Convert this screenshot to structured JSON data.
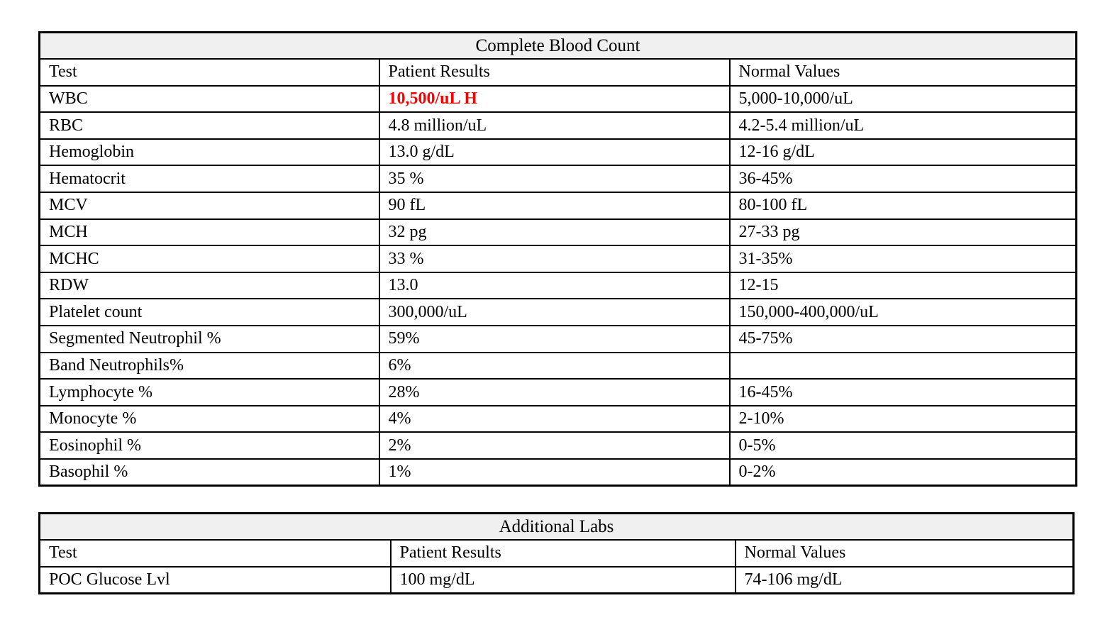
{
  "colors": {
    "background": "#ffffff",
    "table_border": "#000000",
    "title_row_fill": "#f0f0f0",
    "text": "#000000",
    "abnormal_value": "#ff0000"
  },
  "cbc_table": {
    "title": "Complete Blood Count",
    "columns": [
      "Test",
      "Patient Results",
      "Normal Values"
    ],
    "rows": [
      {
        "test": "WBC",
        "result": "10,500/uL H",
        "normal": "5,000-10,000/uL",
        "abnormal": true
      },
      {
        "test": "RBC",
        "result": "4.8 million/uL",
        "normal": "4.2-5.4 million/uL"
      },
      {
        "test": "Hemoglobin",
        "result": "13.0 g/dL",
        "normal": "12-16 g/dL"
      },
      {
        "test": "Hematocrit",
        "result": "35 %",
        "normal": "36-45%"
      },
      {
        "test": "MCV",
        "result": "90 fL",
        "normal": "80-100 fL"
      },
      {
        "test": "MCH",
        "result": "32 pg",
        "normal": "27-33 pg"
      },
      {
        "test": "MCHC",
        "result": "33 %",
        "normal": "31-35%"
      },
      {
        "test": "RDW",
        "result": "13.0",
        "normal": "12-15"
      },
      {
        "test": "Platelet count",
        "result": "300,000/uL",
        "normal": "150,000-400,000/uL"
      },
      {
        "test": "Segmented Neutrophil %",
        "result": "59%",
        "normal": "45-75%"
      },
      {
        "test": "Band Neutrophils%",
        "result": "6%",
        "normal": ""
      },
      {
        "test": "Lymphocyte %",
        "result": "28%",
        "normal": "16-45%"
      },
      {
        "test": "Monocyte %",
        "result": "4%",
        "normal": "2-10%"
      },
      {
        "test": "Eosinophil %",
        "result": "2%",
        "normal": "0-5%"
      },
      {
        "test": "Basophil %",
        "result": "1%",
        "normal": "0-2%"
      }
    ]
  },
  "additional_labs_table": {
    "title": "Additional Labs",
    "columns": [
      "Test",
      "Patient Results",
      "Normal Values"
    ],
    "rows": [
      {
        "test": "POC Glucose Lvl",
        "result": "100 mg/dL",
        "normal": "74-106 mg/dL"
      }
    ]
  }
}
